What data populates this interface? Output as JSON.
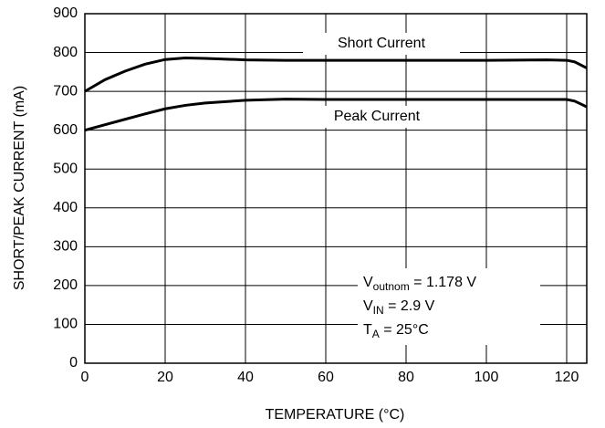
{
  "chart_data": {
    "type": "line",
    "xlabel": "TEMPERATURE (°C)",
    "ylabel": "SHORT/PEAK CURRENT (mA)",
    "x": [
      0,
      5,
      10,
      15,
      20,
      25,
      30,
      40,
      50,
      60,
      80,
      100,
      115,
      120,
      122,
      125
    ],
    "series": [
      {
        "name": "Short Current",
        "color": "#000000",
        "values": [
          700,
          730,
          752,
          770,
          782,
          786,
          785,
          781,
          780,
          780,
          780,
          780,
          781,
          780,
          776,
          760
        ]
      },
      {
        "name": "Peak Current",
        "color": "#000000",
        "values": [
          600,
          614,
          628,
          642,
          655,
          664,
          670,
          677,
          680,
          679,
          679,
          679,
          679,
          679,
          675,
          660
        ]
      }
    ],
    "annotations": [
      {
        "base": "V",
        "sub": "outnom",
        "rest": " = 1.178 V"
      },
      {
        "base": "V",
        "sub": "IN",
        "rest": " = 2.9 V"
      },
      {
        "base": "T",
        "sub": "A",
        "rest": " = 25°C"
      }
    ],
    "xlim": [
      0,
      125
    ],
    "xticks": [
      0,
      20,
      40,
      60,
      80,
      100,
      120
    ],
    "ylim": [
      0,
      900
    ],
    "yticks": [
      0,
      100,
      200,
      300,
      400,
      500,
      600,
      700,
      800,
      900
    ],
    "grid": true
  }
}
